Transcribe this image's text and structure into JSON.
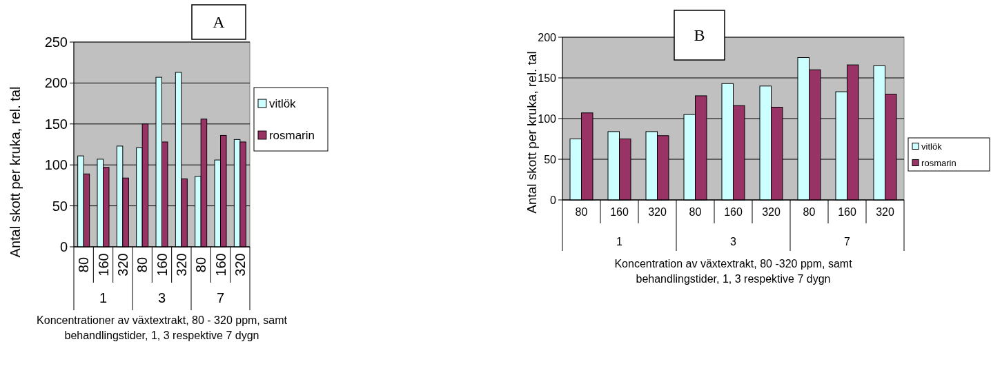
{
  "chart_data": [
    {
      "type": "bar",
      "title": "A",
      "ylabel": "Antal skott per kruka, rel. tal",
      "xlabel": "Koncentrationer av växtextrakt, 80 - 320 ppm, samt\nbehandlingstider, 1, 3 respektive 7 dygn",
      "categories": [
        "80",
        "160",
        "320",
        "80",
        "160",
        "320",
        "80",
        "160",
        "320"
      ],
      "annotations": [
        "1",
        "3",
        "7"
      ],
      "series": [
        {
          "name": "vitlök",
          "color": "#ccffff",
          "values": [
            111,
            107,
            123,
            121,
            207,
            213,
            86,
            106,
            131
          ]
        },
        {
          "name": "rosmarin",
          "color": "#993366",
          "values": [
            89,
            97,
            84,
            150,
            128,
            83,
            156,
            136,
            128
          ]
        }
      ],
      "ylim": [
        0,
        250
      ],
      "yticks": [
        0,
        50,
        100,
        150,
        200,
        250
      ],
      "grid": "y",
      "legend": "right"
    },
    {
      "type": "bar",
      "title": "B",
      "ylabel": "Antal skott per kruka, rel. tal",
      "xlabel": "Koncentration av växtextrakt, 80 -320 ppm, samt\nbehandlingstider, 1, 3 respektive 7 dygn",
      "categories": [
        "80",
        "160",
        "320",
        "80",
        "160",
        "320",
        "80",
        "160",
        "320"
      ],
      "annotations": [
        "1",
        "3",
        "7"
      ],
      "series": [
        {
          "name": "vitlök",
          "color": "#ccffff",
          "values": [
            75,
            84,
            84,
            105,
            143,
            140,
            175,
            133,
            165
          ]
        },
        {
          "name": "rosmarin",
          "color": "#993366",
          "values": [
            107,
            75,
            79,
            128,
            116,
            114,
            160,
            166,
            130
          ]
        }
      ],
      "ylim": [
        0,
        200
      ],
      "yticks": [
        0,
        50,
        100,
        150,
        200
      ],
      "grid": "y",
      "legend": "right"
    }
  ]
}
